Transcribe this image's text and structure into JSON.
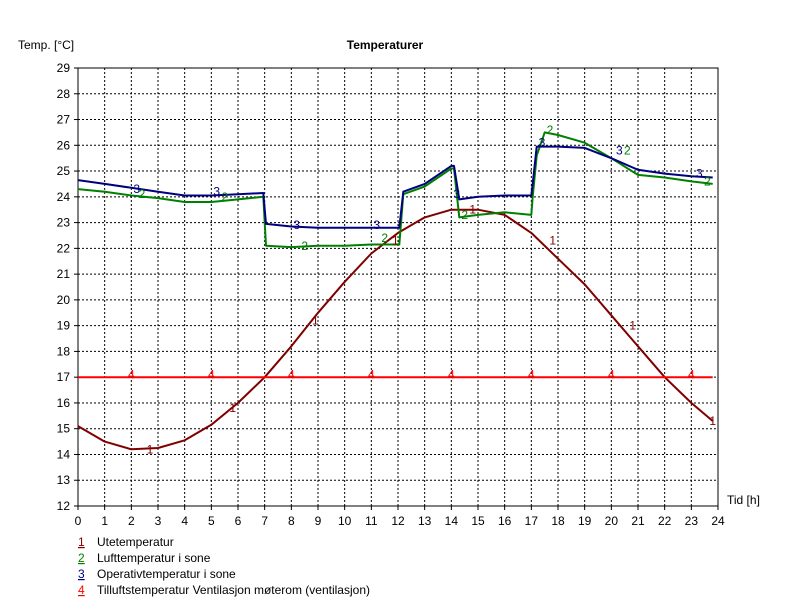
{
  "chart_data": {
    "type": "line",
    "title": "Temperaturer",
    "ylabel": "Temp. [°C]",
    "xlabel": "Tid [h]",
    "xlim": [
      0,
      24
    ],
    "ylim": [
      12,
      29
    ],
    "x_ticks": [
      0,
      1,
      2,
      3,
      4,
      5,
      6,
      7,
      8,
      9,
      10,
      11,
      12,
      13,
      14,
      15,
      16,
      17,
      18,
      19,
      20,
      21,
      22,
      23,
      24
    ],
    "y_ticks": [
      12,
      13,
      14,
      15,
      16,
      17,
      18,
      19,
      20,
      21,
      22,
      23,
      24,
      25,
      26,
      27,
      28,
      29
    ],
    "grid": true,
    "legend_position": "bottom-left",
    "series": [
      {
        "name": "Utetemperatur",
        "marker": "1",
        "color": "#800000",
        "x": [
          0,
          1,
          2,
          3,
          4,
          5,
          6,
          7,
          8,
          9,
          10,
          11,
          12,
          13,
          14,
          15,
          16,
          17,
          18,
          19,
          20,
          21,
          22,
          23,
          23.8
        ],
        "y": [
          15.1,
          14.5,
          14.2,
          14.25,
          14.55,
          15.15,
          16.0,
          17.0,
          18.2,
          19.5,
          20.7,
          21.8,
          22.6,
          23.2,
          23.5,
          23.5,
          23.3,
          22.6,
          21.6,
          20.6,
          19.4,
          18.2,
          17.0,
          16.0,
          15.3
        ]
      },
      {
        "name": "Lufttemperatur i sone",
        "marker": "2",
        "color": "#008000",
        "x": [
          0,
          1,
          2,
          3,
          4,
          5,
          6,
          6.95,
          7.05,
          8,
          9,
          10,
          11,
          12.05,
          12.2,
          13,
          14,
          14.1,
          14.3,
          15,
          16,
          17,
          17.05,
          17.2,
          17.5,
          18,
          19,
          20,
          21,
          22,
          23,
          23.8
        ],
        "y": [
          24.3,
          24.2,
          24.05,
          23.95,
          23.8,
          23.8,
          23.9,
          24.0,
          22.1,
          22.05,
          22.1,
          22.1,
          22.15,
          22.15,
          24.1,
          24.4,
          25.1,
          25.1,
          23.2,
          23.3,
          23.4,
          23.3,
          24.0,
          25.6,
          26.5,
          26.4,
          26.1,
          25.5,
          24.85,
          24.75,
          24.6,
          24.5
        ]
      },
      {
        "name": "Operativtemperatur i sone",
        "marker": "3",
        "color": "#000080",
        "x": [
          0,
          1,
          2,
          3,
          4,
          5,
          6,
          6.95,
          7.05,
          8,
          9,
          10,
          11,
          12.05,
          12.2,
          13,
          14,
          14.1,
          14.3,
          15,
          16,
          17,
          17.05,
          17.2,
          17.5,
          18,
          19,
          20,
          21,
          22,
          23,
          23.8
        ],
        "y": [
          24.65,
          24.5,
          24.35,
          24.2,
          24.05,
          24.05,
          24.1,
          24.15,
          22.95,
          22.85,
          22.8,
          22.8,
          22.8,
          22.8,
          24.2,
          24.5,
          25.2,
          25.2,
          23.9,
          24.0,
          24.05,
          24.05,
          24.5,
          25.95,
          25.95,
          25.95,
          25.9,
          25.5,
          25.05,
          24.9,
          24.8,
          24.75
        ]
      },
      {
        "name": "Tilluftstemperatur Ventilasjon møterom (ventilasjon)",
        "marker": "4",
        "color": "#ff0000",
        "x": [
          0,
          23.8
        ],
        "y": [
          17,
          17
        ]
      }
    ],
    "markers": [
      {
        "series": 0,
        "label": "1",
        "at": [
          [
            2.7,
            14.2
          ],
          [
            5.8,
            15.8
          ],
          [
            8.9,
            19.2
          ],
          [
            11.9,
            22.3
          ],
          [
            14.8,
            23.5
          ],
          [
            17.8,
            22.3
          ],
          [
            20.8,
            19.0
          ],
          [
            23.8,
            15.3
          ]
        ]
      },
      {
        "series": 1,
        "label": "2",
        "at": [
          [
            2.4,
            24.1
          ],
          [
            5.5,
            24.0
          ],
          [
            8.5,
            22.1
          ],
          [
            11.5,
            22.4
          ],
          [
            14.5,
            23.3
          ],
          [
            17.7,
            26.6
          ],
          [
            20.6,
            25.8
          ],
          [
            23.6,
            24.6
          ]
        ]
      },
      {
        "series": 2,
        "label": "3",
        "at": [
          [
            2.2,
            24.3
          ],
          [
            5.2,
            24.2
          ],
          [
            8.2,
            22.9
          ],
          [
            11.2,
            22.9
          ],
          [
            14.2,
            24.1
          ],
          [
            17.4,
            26.1
          ],
          [
            20.3,
            25.8
          ],
          [
            23.3,
            24.9
          ]
        ]
      },
      {
        "series": 3,
        "label": "4",
        "at": [
          [
            2,
            17.1
          ],
          [
            5,
            17.1
          ],
          [
            8,
            17.1
          ],
          [
            11,
            17.1
          ],
          [
            14,
            17.1
          ],
          [
            17,
            17.1
          ],
          [
            20,
            17.1
          ],
          [
            23,
            17.1
          ]
        ]
      }
    ]
  }
}
